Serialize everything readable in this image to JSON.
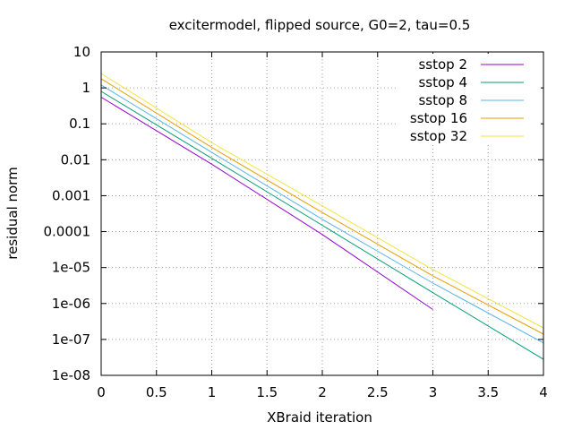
{
  "chart_data": {
    "type": "line",
    "title": "excitermodel, flipped source, G0=2, tau=0.5",
    "xlabel": "XBraid iteration",
    "ylabel": "residual norm",
    "xlim": [
      0,
      4
    ],
    "ylim": [
      1e-08,
      10
    ],
    "yscale": "log",
    "grid": true,
    "legend_position": "top-right",
    "x_ticks": [
      0,
      0.5,
      1,
      1.5,
      2,
      2.5,
      3,
      3.5,
      4
    ],
    "x_tick_labels": [
      "0",
      "0.5",
      "1",
      "1.5",
      "2",
      "2.5",
      "3",
      "3.5",
      "4"
    ],
    "y_ticks": [
      1e-08,
      1e-07,
      1e-06,
      1e-05,
      0.0001,
      0.001,
      0.01,
      0.1,
      1,
      10
    ],
    "y_tick_labels": [
      "1e-08",
      "1e-07",
      "1e-06",
      "1e-05",
      "0.0001",
      "0.001",
      "0.01",
      "0.1",
      "1",
      "10"
    ],
    "series": [
      {
        "name": "sstop 2",
        "color": "#9400d3",
        "x": [
          0,
          1,
          2,
          3
        ],
        "y": [
          0.55,
          0.0075,
          8.3e-05,
          6.8e-07
        ]
      },
      {
        "name": "sstop 4",
        "color": "#009e73",
        "x": [
          0,
          1,
          2,
          3,
          4
        ],
        "y": [
          0.8,
          0.011,
          0.00015,
          2e-06,
          2.8e-08
        ]
      },
      {
        "name": "sstop 8",
        "color": "#56b4e9",
        "x": [
          0,
          1,
          2,
          3,
          4
        ],
        "y": [
          1.2,
          0.016,
          0.00022,
          3.7e-06,
          8e-08
        ]
      },
      {
        "name": "sstop 16",
        "color": "#e69f00",
        "x": [
          0,
          1,
          2,
          3,
          4
        ],
        "y": [
          1.8,
          0.022,
          0.00034,
          5.9e-06,
          1.4e-07
        ]
      },
      {
        "name": "sstop 32",
        "color": "#f0e442",
        "x": [
          0,
          1,
          2,
          3,
          4
        ],
        "y": [
          2.5,
          0.03,
          0.00052,
          8.8e-06,
          2.1e-07
        ]
      }
    ]
  }
}
